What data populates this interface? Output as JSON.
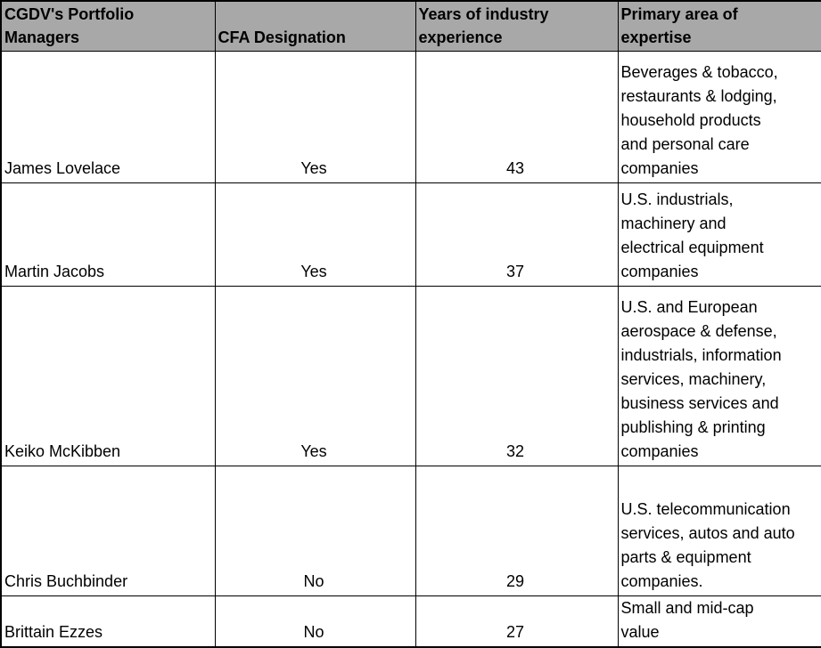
{
  "title": "CGDV portfolio managers table",
  "colors": {
    "header_bg": "#A8A8A8",
    "border": "#000000",
    "text": "#000000",
    "row_bg": "#FFFFFF"
  },
  "table": {
    "columns": [
      {
        "id": "manager",
        "label": "CGDV's Portfolio\nManagers"
      },
      {
        "id": "cfa",
        "label": "CFA Designation"
      },
      {
        "id": "years",
        "label": "Years of industry\nexperience"
      },
      {
        "id": "expertise",
        "label": "Primary area of\nexpertise"
      }
    ],
    "rows": [
      {
        "manager": "James Lovelace",
        "cfa": "Yes",
        "years": "43",
        "expertise": "Beverages & tobacco,\nrestaurants & lodging,\nhousehold products\nand personal care\ncompanies"
      },
      {
        "manager": "Martin Jacobs",
        "cfa": "Yes",
        "years": "37",
        "expertise": "U.S. industrials,\nmachinery and\nelectrical equipment\ncompanies"
      },
      {
        "manager": "Keiko McKibben",
        "cfa": "Yes",
        "years": "32",
        "expertise": "U.S. and European\naerospace & defense,\nindustrials, information\nservices, machinery,\nbusiness services and\npublishing & printing\ncompanies"
      },
      {
        "manager": "Chris Buchbinder",
        "cfa": "No",
        "years": "29",
        "expertise": "U.S. telecommunication\nservices, autos and auto\nparts & equipment\ncompanies."
      },
      {
        "manager": "Brittain Ezzes",
        "cfa": "No",
        "years": "27",
        "expertise": "Small and mid-cap\nvalue"
      }
    ]
  }
}
